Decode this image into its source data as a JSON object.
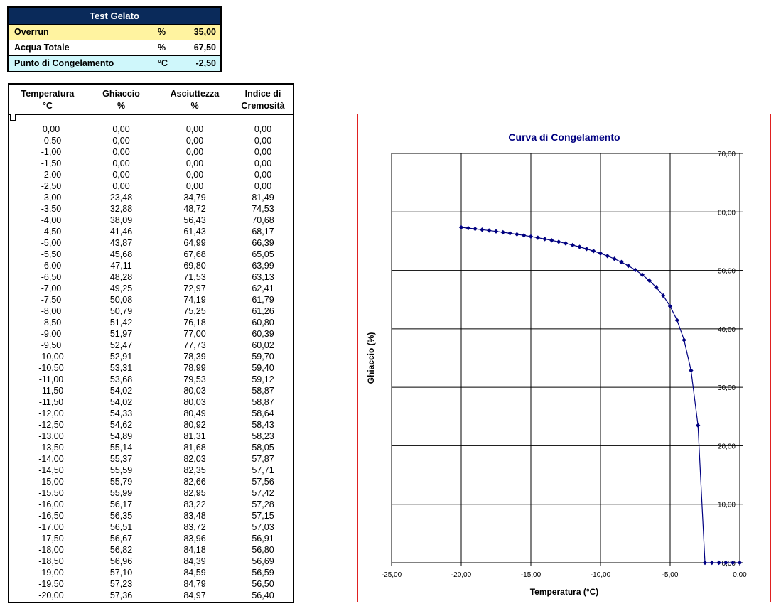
{
  "summary": {
    "title": "Test Gelato",
    "rows": [
      {
        "label": "Overrun",
        "unit": "%",
        "value": "35,00"
      },
      {
        "label": "Acqua Totale",
        "unit": "%",
        "value": "67,50"
      },
      {
        "label": "Punto di Congelamento",
        "unit": "°C",
        "value": "-2,50"
      }
    ]
  },
  "table": {
    "headers": [
      {
        "line1": "Temperatura",
        "line2": "°C"
      },
      {
        "line1": "Ghiaccio",
        "line2": "%"
      },
      {
        "line1": "Asciuttezza",
        "line2": "%"
      },
      {
        "line1": "Indice di",
        "line2": "Cremosità"
      }
    ],
    "rows": [
      [
        "0,00",
        "0,00",
        "0,00",
        "0,00"
      ],
      [
        "-0,50",
        "0,00",
        "0,00",
        "0,00"
      ],
      [
        "-1,00",
        "0,00",
        "0,00",
        "0,00"
      ],
      [
        "-1,50",
        "0,00",
        "0,00",
        "0,00"
      ],
      [
        "-2,00",
        "0,00",
        "0,00",
        "0,00"
      ],
      [
        "-2,50",
        "0,00",
        "0,00",
        "0,00"
      ],
      [
        "-3,00",
        "23,48",
        "34,79",
        "81,49"
      ],
      [
        "-3,50",
        "32,88",
        "48,72",
        "74,53"
      ],
      [
        "-4,00",
        "38,09",
        "56,43",
        "70,68"
      ],
      [
        "-4,50",
        "41,46",
        "61,43",
        "68,17"
      ],
      [
        "-5,00",
        "43,87",
        "64,99",
        "66,39"
      ],
      [
        "-5,50",
        "45,68",
        "67,68",
        "65,05"
      ],
      [
        "-6,00",
        "47,11",
        "69,80",
        "63,99"
      ],
      [
        "-6,50",
        "48,28",
        "71,53",
        "63,13"
      ],
      [
        "-7,00",
        "49,25",
        "72,97",
        "62,41"
      ],
      [
        "-7,50",
        "50,08",
        "74,19",
        "61,79"
      ],
      [
        "-8,00",
        "50,79",
        "75,25",
        "61,26"
      ],
      [
        "-8,50",
        "51,42",
        "76,18",
        "60,80"
      ],
      [
        "-9,00",
        "51,97",
        "77,00",
        "60,39"
      ],
      [
        "-9,50",
        "52,47",
        "77,73",
        "60,02"
      ],
      [
        "-10,00",
        "52,91",
        "78,39",
        "59,70"
      ],
      [
        "-10,50",
        "53,31",
        "78,99",
        "59,40"
      ],
      [
        "-11,00",
        "53,68",
        "79,53",
        "59,12"
      ],
      [
        "-11,50",
        "54,02",
        "80,03",
        "58,87"
      ],
      [
        "-11,50",
        "54,02",
        "80,03",
        "58,87"
      ],
      [
        "-12,00",
        "54,33",
        "80,49",
        "58,64"
      ],
      [
        "-12,50",
        "54,62",
        "80,92",
        "58,43"
      ],
      [
        "-13,00",
        "54,89",
        "81,31",
        "58,23"
      ],
      [
        "-13,50",
        "55,14",
        "81,68",
        "58,05"
      ],
      [
        "-14,00",
        "55,37",
        "82,03",
        "57,87"
      ],
      [
        "-14,50",
        "55,59",
        "82,35",
        "57,71"
      ],
      [
        "-15,00",
        "55,79",
        "82,66",
        "57,56"
      ],
      [
        "-15,50",
        "55,99",
        "82,95",
        "57,42"
      ],
      [
        "-16,00",
        "56,17",
        "83,22",
        "57,28"
      ],
      [
        "-16,50",
        "56,35",
        "83,48",
        "57,15"
      ],
      [
        "-17,00",
        "56,51",
        "83,72",
        "57,03"
      ],
      [
        "-17,50",
        "56,67",
        "83,96",
        "56,91"
      ],
      [
        "-18,00",
        "56,82",
        "84,18",
        "56,80"
      ],
      [
        "-18,50",
        "56,96",
        "84,39",
        "56,69"
      ],
      [
        "-19,00",
        "57,10",
        "84,59",
        "56,59"
      ],
      [
        "-19,50",
        "57,23",
        "84,79",
        "56,50"
      ],
      [
        "-20,00",
        "57,36",
        "84,97",
        "56,40"
      ]
    ]
  },
  "chart_data": {
    "type": "scatter",
    "title": "Curva di Congelamento",
    "xlabel": "Temperatura (°C)",
    "ylabel": "Ghiaccio (%)",
    "xlim": [
      -25,
      0
    ],
    "ylim": [
      0,
      70
    ],
    "x_ticks": [
      "-25,00",
      "-20,00",
      "-15,00",
      "-10,00",
      "-5,00",
      "0,00"
    ],
    "y_ticks": [
      "0,00",
      "10,00",
      "20,00",
      "30,00",
      "40,00",
      "50,00",
      "60,00",
      "70,00"
    ],
    "grid": true,
    "colors": {
      "series": "#000080",
      "border": "#e02020"
    },
    "x": [
      0,
      -0.5,
      -1,
      -1.5,
      -2,
      -2.5,
      -3,
      -3.5,
      -4,
      -4.5,
      -5,
      -5.5,
      -6,
      -6.5,
      -7,
      -7.5,
      -8,
      -8.5,
      -9,
      -9.5,
      -10,
      -10.5,
      -11,
      -11.5,
      -12,
      -12.5,
      -13,
      -13.5,
      -14,
      -14.5,
      -15,
      -15.5,
      -16,
      -16.5,
      -17,
      -17.5,
      -18,
      -18.5,
      -19,
      -19.5,
      -20
    ],
    "y": [
      0,
      0,
      0,
      0,
      0,
      0,
      23.48,
      32.88,
      38.09,
      41.46,
      43.87,
      45.68,
      47.11,
      48.28,
      49.25,
      50.08,
      50.79,
      51.42,
      51.97,
      52.47,
      52.91,
      53.31,
      53.68,
      54.02,
      54.33,
      54.62,
      54.89,
      55.14,
      55.37,
      55.59,
      55.79,
      55.99,
      56.17,
      56.35,
      56.51,
      56.67,
      56.82,
      56.96,
      57.1,
      57.23,
      57.36
    ]
  }
}
